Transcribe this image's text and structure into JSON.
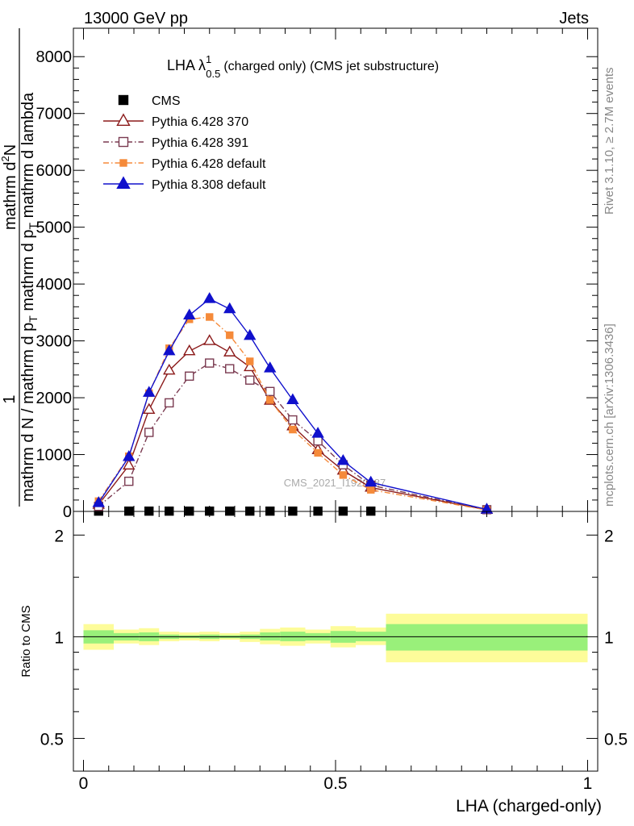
{
  "header": {
    "left": "13000 GeV pp",
    "right": "Jets"
  },
  "side_text": {
    "rivet": "Rivet 3.1.10, ≥ 2.7M events",
    "mcplots": "mcplots.cern.ch [arXiv:1306.3436]"
  },
  "watermark": "CMS_2021_I1920187",
  "chart_data": [
    {
      "type": "line",
      "title_main": "LHA λ",
      "title_sup": "1",
      "title_sub": "0.5",
      "title_rest": "(charged only) (CMS jet substructure)",
      "ylabel_numer": "1",
      "ylabel_denom_lines": [
        "mathrm d N / mathrm d p",
        "T",
        "mathrm d p",
        "T",
        "mathrm d lambda"
      ],
      "ylabel_frac_top": "mathrm d",
      "ylabel_frac_top_sup": "2",
      "ylabel_frac_top_rest": "N",
      "ylabel_denom": "mathrm d N / mathrm d p",
      "ylabel_denom_sub": "T",
      "ylabel_denom2": "mathrm d p",
      "ylabel_denom2_sub": "T",
      "ylabel_denom3": "mathrm d lambda",
      "xlim": [
        -0.02,
        1.02
      ],
      "ylim": [
        0,
        8500
      ],
      "yticks": [
        0,
        1000,
        2000,
        3000,
        4000,
        5000,
        6000,
        7000,
        8000
      ],
      "yticklabels": [
        "0",
        "1000",
        "2000",
        "3000",
        "4000",
        "5000",
        "6000",
        "7000",
        "8000"
      ],
      "legend_position": "top-left",
      "series": [
        {
          "name": "CMS",
          "color": "#000000",
          "marker": "square-filled",
          "line": "none",
          "x": [
            0.03,
            0.09,
            0.13,
            0.17,
            0.21,
            0.25,
            0.29,
            0.33,
            0.37,
            0.415,
            0.465,
            0.515,
            0.57
          ],
          "y": [
            5,
            5,
            5,
            5,
            5,
            5,
            5,
            5,
            5,
            5,
            5,
            5,
            5
          ]
        },
        {
          "name": "Pythia 6.428 370",
          "color": "#8b1a1a",
          "marker": "triangle-open",
          "line": "solid",
          "x": [
            0.03,
            0.09,
            0.13,
            0.17,
            0.21,
            0.25,
            0.29,
            0.33,
            0.37,
            0.415,
            0.465,
            0.515,
            0.57,
            0.8
          ],
          "y": [
            120,
            810,
            1790,
            2480,
            2820,
            3000,
            2800,
            2540,
            1950,
            1500,
            1080,
            720,
            420,
            30
          ]
        },
        {
          "name": "Pythia 6.428 391",
          "color": "#7a3a50",
          "marker": "square-open",
          "line": "dashdot",
          "x": [
            0.03,
            0.09,
            0.13,
            0.17,
            0.21,
            0.25,
            0.29,
            0.33,
            0.37,
            0.415,
            0.465,
            0.515,
            0.57,
            0.8
          ],
          "y": [
            90,
            530,
            1390,
            1910,
            2380,
            2610,
            2510,
            2310,
            2110,
            1610,
            1240,
            820,
            460,
            30
          ]
        },
        {
          "name": "Pythia 6.428 default",
          "color": "#f58a3a",
          "marker": "square-filled",
          "line": "dashdot",
          "x": [
            0.03,
            0.09,
            0.13,
            0.17,
            0.21,
            0.25,
            0.29,
            0.33,
            0.37,
            0.415,
            0.465,
            0.515,
            0.57,
            0.8
          ],
          "y": [
            180,
            970,
            2080,
            2870,
            3380,
            3420,
            3100,
            2640,
            1960,
            1440,
            1030,
            640,
            380,
            25
          ]
        },
        {
          "name": "Pythia 8.308 default",
          "color": "#1010cc",
          "marker": "triangle-filled",
          "line": "solid",
          "x": [
            0.03,
            0.09,
            0.13,
            0.17,
            0.21,
            0.25,
            0.29,
            0.33,
            0.37,
            0.415,
            0.465,
            0.515,
            0.57,
            0.8
          ],
          "y": [
            150,
            960,
            2090,
            2820,
            3450,
            3740,
            3560,
            3090,
            2520,
            1960,
            1370,
            890,
            510,
            35
          ]
        }
      ]
    },
    {
      "type": "area",
      "ylabel": "Ratio to CMS",
      "xlabel": "LHA (charged-only)",
      "xlim": [
        -0.02,
        1.02
      ],
      "ylim": [
        0.4,
        2.35
      ],
      "scale": "log",
      "yticks": [
        0.5,
        1,
        2
      ],
      "yticklabels": [
        "0.5",
        "1",
        "2"
      ],
      "xticks": [
        0,
        0.5,
        1
      ],
      "xticklabels": [
        "0",
        "0.5",
        "1"
      ],
      "band_colors": {
        "inner": "#99f07a",
        "outer": "#fdfc9a",
        "line": "#000000"
      },
      "bins": [
        {
          "x0": 0.0,
          "x1": 0.06,
          "inner": [
            0.955,
            1.045
          ],
          "outer": [
            0.915,
            1.09
          ]
        },
        {
          "x0": 0.06,
          "x1": 0.11,
          "inner": [
            0.975,
            1.025
          ],
          "outer": [
            0.955,
            1.05
          ]
        },
        {
          "x0": 0.11,
          "x1": 0.15,
          "inner": [
            0.97,
            1.03
          ],
          "outer": [
            0.945,
            1.06
          ]
        },
        {
          "x0": 0.15,
          "x1": 0.19,
          "inner": [
            0.985,
            1.015
          ],
          "outer": [
            0.97,
            1.035
          ]
        },
        {
          "x0": 0.19,
          "x1": 0.23,
          "inner": [
            0.99,
            1.01
          ],
          "outer": [
            0.975,
            1.03
          ]
        },
        {
          "x0": 0.23,
          "x1": 0.27,
          "inner": [
            0.985,
            1.015
          ],
          "outer": [
            0.97,
            1.035
          ]
        },
        {
          "x0": 0.27,
          "x1": 0.31,
          "inner": [
            0.99,
            1.01
          ],
          "outer": [
            0.98,
            1.025
          ]
        },
        {
          "x0": 0.31,
          "x1": 0.35,
          "inner": [
            0.985,
            1.015
          ],
          "outer": [
            0.965,
            1.035
          ]
        },
        {
          "x0": 0.35,
          "x1": 0.39,
          "inner": [
            0.975,
            1.03
          ],
          "outer": [
            0.95,
            1.055
          ]
        },
        {
          "x0": 0.39,
          "x1": 0.44,
          "inner": [
            0.97,
            1.035
          ],
          "outer": [
            0.94,
            1.065
          ]
        },
        {
          "x0": 0.44,
          "x1": 0.49,
          "inner": [
            0.975,
            1.025
          ],
          "outer": [
            0.955,
            1.05
          ]
        },
        {
          "x0": 0.49,
          "x1": 0.54,
          "inner": [
            0.96,
            1.04
          ],
          "outer": [
            0.93,
            1.075
          ]
        },
        {
          "x0": 0.54,
          "x1": 0.6,
          "inner": [
            0.97,
            1.035
          ],
          "outer": [
            0.945,
            1.065
          ]
        },
        {
          "x0": 0.6,
          "x1": 1.0,
          "inner": [
            0.91,
            1.09
          ],
          "outer": [
            0.84,
            1.17
          ]
        }
      ]
    }
  ]
}
